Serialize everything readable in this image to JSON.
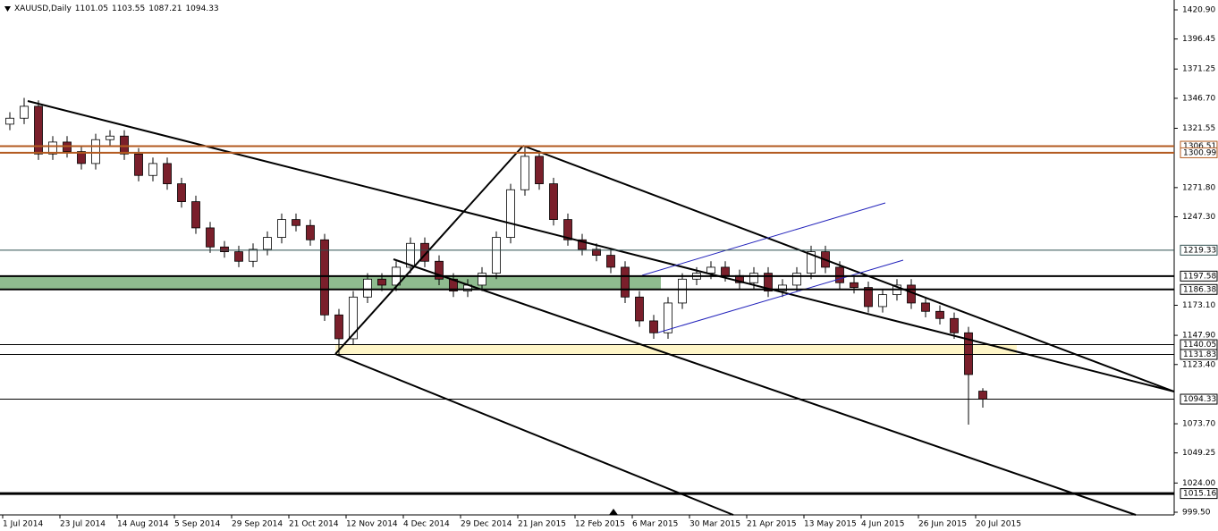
{
  "chart_data": {
    "type": "candlestick",
    "header": {
      "symbol": "XAUUSD,Daily",
      "ohlc": [
        1101.05,
        1103.55,
        1087.21,
        1094.33
      ]
    },
    "xlim": [
      -0.75,
      327.5
    ],
    "ylim": [
      997.25,
      1429.15
    ],
    "xticks": [
      {
        "value": 0,
        "label": "1 Jul 2014"
      },
      {
        "value": 16,
        "label": "23 Jul 2014"
      },
      {
        "value": 32,
        "label": "14 Aug 2014"
      },
      {
        "value": 48,
        "label": "5 Sep 2014"
      },
      {
        "value": 64,
        "label": "29 Sep 2014"
      },
      {
        "value": 80,
        "label": "21 Oct 2014"
      },
      {
        "value": 96,
        "label": "12 Nov 2014"
      },
      {
        "value": 112,
        "label": "4 Dec 2014"
      },
      {
        "value": 128,
        "label": "29 Dec 2014"
      },
      {
        "value": 144,
        "label": "21 Jan 2015"
      },
      {
        "value": 160,
        "label": "12 Feb 2015"
      },
      {
        "value": 176,
        "label": "6 Mar 2015"
      },
      {
        "value": 192,
        "label": "30 Mar 2015"
      },
      {
        "value": 208,
        "label": "21 Apr 2015"
      },
      {
        "value": 224,
        "label": "13 May 2015"
      },
      {
        "value": 240,
        "label": "4 Jun 2015"
      },
      {
        "value": 256,
        "label": "26 Jun 2015"
      },
      {
        "value": 272,
        "label": "20 Jul 2015"
      }
    ],
    "yticks": [
      {
        "value": 1420.9,
        "label": "1420.90"
      },
      {
        "value": 1396.45,
        "label": "1396.45"
      },
      {
        "value": 1371.25,
        "label": "1371.25"
      },
      {
        "value": 1346.7,
        "label": "1346.70"
      },
      {
        "value": 1321.55,
        "label": "1321.55"
      },
      {
        "value": 1271.8,
        "label": "1271.80"
      },
      {
        "value": 1247.3,
        "label": "1247.30"
      },
      {
        "value": 1173.1,
        "label": "1173.10"
      },
      {
        "value": 1147.9,
        "label": "1147.90"
      },
      {
        "value": 1123.4,
        "label": "1123.40"
      },
      {
        "value": 1073.7,
        "label": "1073.70"
      },
      {
        "value": 1049.25,
        "label": "1049.25"
      },
      {
        "value": 1024,
        "label": "1024.00"
      },
      {
        "value": 999.5,
        "label": "999.50"
      }
    ],
    "bull_color": "#ffffff",
    "bear_color": "#7a1f2b",
    "x": [
      2,
      6,
      10,
      14,
      18,
      22,
      26,
      30,
      34,
      38,
      42,
      46,
      50,
      54,
      58,
      62,
      66,
      70,
      74,
      78,
      82,
      86,
      90,
      94,
      98,
      102,
      106,
      110,
      114,
      118,
      122,
      126,
      130,
      134,
      138,
      142,
      146,
      150,
      154,
      158,
      162,
      166,
      170,
      174,
      178,
      182,
      186,
      190,
      194,
      198,
      202,
      206,
      210,
      214,
      218,
      222,
      226,
      230,
      234,
      238,
      242,
      246,
      250,
      254,
      258,
      262,
      266,
      270,
      274
    ],
    "open": [
      1325,
      1330,
      1340,
      1300,
      1310,
      1302,
      1292,
      1312,
      1315,
      1300,
      1282,
      1292,
      1275,
      1260,
      1238,
      1222,
      1218,
      1210,
      1220,
      1230,
      1245,
      1240,
      1228,
      1165,
      1145,
      1180,
      1195,
      1190,
      1205,
      1225,
      1210,
      1195,
      1185,
      1190,
      1200,
      1230,
      1270,
      1298,
      1275,
      1245,
      1228,
      1220,
      1215,
      1205,
      1180,
      1160,
      1150,
      1175,
      1195,
      1200,
      1205,
      1198,
      1192,
      1200,
      1185,
      1190,
      1200,
      1218,
      1205,
      1192,
      1188,
      1172,
      1182,
      1190,
      1175,
      1168,
      1162,
      1150,
      1101.05
    ],
    "high": [
      1335,
      1347,
      1345,
      1315,
      1315,
      1307,
      1317,
      1320,
      1320,
      1305,
      1297,
      1297,
      1280,
      1265,
      1243,
      1227,
      1223,
      1225,
      1235,
      1250,
      1250,
      1245,
      1233,
      1170,
      1185,
      1200,
      1200,
      1210,
      1230,
      1230,
      1215,
      1200,
      1195,
      1205,
      1235,
      1275,
      1307,
      1303,
      1280,
      1250,
      1233,
      1225,
      1220,
      1210,
      1185,
      1165,
      1180,
      1200,
      1205,
      1210,
      1210,
      1203,
      1205,
      1205,
      1195,
      1205,
      1223,
      1223,
      1210,
      1197,
      1193,
      1187,
      1195,
      1195,
      1180,
      1173,
      1167,
      1155,
      1103.55
    ],
    "low": [
      1320,
      1325,
      1295,
      1295,
      1297,
      1287,
      1287,
      1307,
      1295,
      1277,
      1277,
      1270,
      1255,
      1233,
      1217,
      1213,
      1205,
      1205,
      1215,
      1225,
      1235,
      1223,
      1160,
      1131,
      1140,
      1175,
      1185,
      1185,
      1200,
      1205,
      1190,
      1180,
      1180,
      1185,
      1195,
      1225,
      1265,
      1270,
      1240,
      1223,
      1215,
      1210,
      1200,
      1175,
      1155,
      1145,
      1145,
      1170,
      1190,
      1195,
      1193,
      1187,
      1187,
      1180,
      1180,
      1185,
      1195,
      1200,
      1187,
      1183,
      1167,
      1167,
      1177,
      1170,
      1163,
      1157,
      1145,
      1073,
      1087.21
    ],
    "close": [
      1330,
      1340,
      1300,
      1310,
      1302,
      1292,
      1312,
      1315,
      1300,
      1282,
      1292,
      1275,
      1260,
      1238,
      1222,
      1218,
      1210,
      1220,
      1230,
      1245,
      1240,
      1228,
      1165,
      1145,
      1180,
      1195,
      1190,
      1205,
      1225,
      1210,
      1195,
      1185,
      1190,
      1200,
      1230,
      1270,
      1298,
      1275,
      1245,
      1228,
      1220,
      1215,
      1205,
      1180,
      1160,
      1150,
      1175,
      1195,
      1200,
      1205,
      1198,
      1192,
      1200,
      1185,
      1190,
      1200,
      1218,
      1205,
      1192,
      1188,
      1172,
      1182,
      1190,
      1175,
      1168,
      1162,
      1150,
      1115,
      1094.33
    ],
    "zones": [
      {
        "from": 1186.38,
        "to": 1197.58,
        "x": [
          -0.75,
          184
        ],
        "color": "#8fbc8f"
      },
      {
        "from": 1131.83,
        "to": 1140.05,
        "x": [
          93,
          283.5
        ],
        "color": "#fff6c8"
      }
    ],
    "levels": [
      {
        "value": 1306.51,
        "color": "#b35a1f",
        "width": 2
      },
      {
        "value": 1300.99,
        "color": "#b35a1f",
        "width": 2
      },
      {
        "value": 1219.33,
        "color": "#2f4f4f",
        "width": 1
      },
      {
        "value": 1197.58,
        "color": "#000000",
        "width": 2
      },
      {
        "value": 1186.38,
        "color": "#000000",
        "width": 2
      },
      {
        "value": 1140.05,
        "color": "#000000",
        "width": 1
      },
      {
        "value": 1131.83,
        "color": "#000000",
        "width": 1
      },
      {
        "value": 1094.33,
        "color": "#000000",
        "width": 1
      },
      {
        "value": 1015.16,
        "color": "#000000",
        "width": 3
      }
    ]
  }
}
